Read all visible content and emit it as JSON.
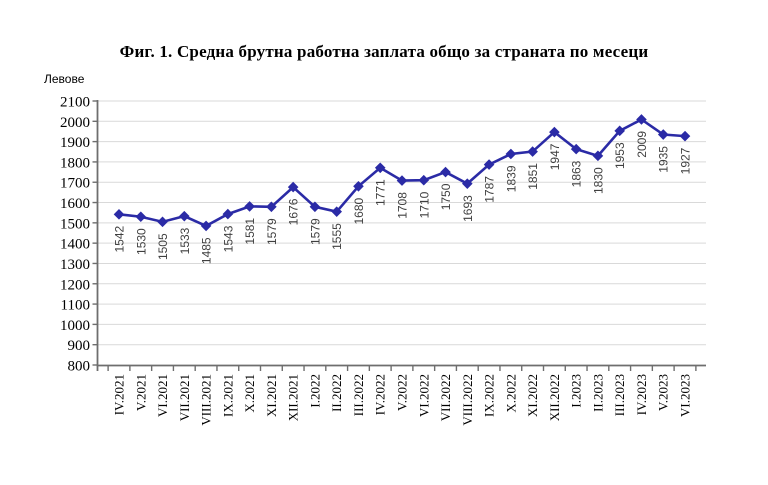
{
  "chart_data": {
    "type": "line",
    "title": "Фиг. 1. Средна брутна работна заплата общо за страната по месеци",
    "ylabel": "Левове",
    "xlabel": "",
    "categories": [
      "IV.2021",
      "V.2021",
      "VI.2021",
      "VII.2021",
      "VIII.2021",
      "IX.2021",
      "X.2021",
      "XI.2021",
      "XII.2021",
      "I.2022",
      "II.2022",
      "III.2022",
      "IV.2022",
      "V.2022",
      "VI.2022",
      "VII.2022",
      "VIII.2022",
      "IX.2022",
      "X.2022",
      "XI.2022",
      "XII.2022",
      "I.2023",
      "II.2023",
      "III.2023",
      "IV.2023",
      "V.2023",
      "VI.2023"
    ],
    "values": [
      1542,
      1530,
      1505,
      1533,
      1485,
      1543,
      1581,
      1579,
      1676,
      1579,
      1555,
      1680,
      1771,
      1708,
      1710,
      1750,
      1693,
      1787,
      1839,
      1851,
      1947,
      1863,
      1830,
      1953,
      2009,
      1935,
      1927
    ],
    "ylim": [
      800,
      2100
    ],
    "ytick_step": 100,
    "grid": true,
    "legend_position": "none",
    "data_labels_visible": true,
    "label_rotation": 90,
    "marker": "diamond",
    "colors": {
      "line": "#2B2BA6",
      "marker": "#2B2BA6",
      "grid": "#D9D9D9",
      "axis": "#6E6E6E",
      "data_label": "#3F3F3F",
      "text": "#000000"
    }
  }
}
